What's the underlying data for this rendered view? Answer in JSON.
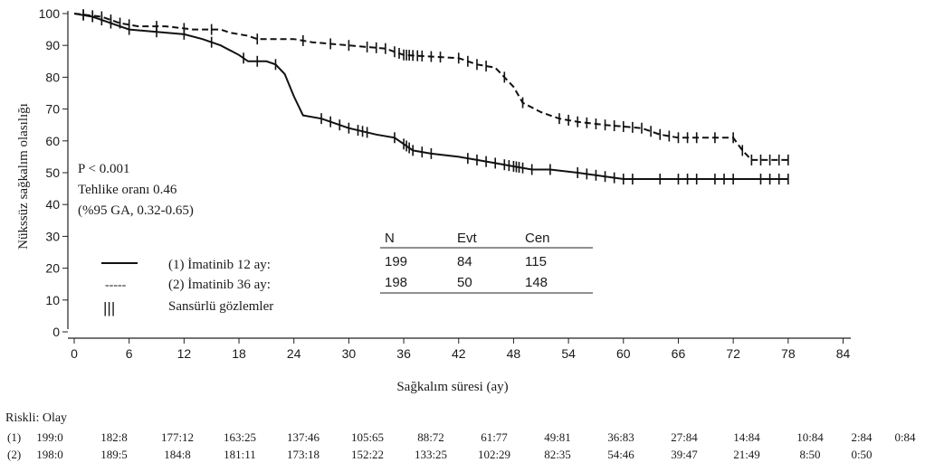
{
  "chart_data": {
    "type": "line",
    "ylabel": "Nükssüz sağkalım olasılığı",
    "xlabel": "Sağkalım süresi (ay)",
    "xlim": [
      0,
      84
    ],
    "ylim": [
      0,
      100
    ],
    "x_ticks": [
      "0",
      "6",
      "12",
      "18",
      "24",
      "30",
      "36",
      "42",
      "48",
      "54",
      "60",
      "66",
      "72",
      "78",
      "84"
    ],
    "y_ticks": [
      "0",
      "10",
      "20",
      "30",
      "40",
      "50",
      "60",
      "70",
      "80",
      "90",
      "100"
    ],
    "stats": {
      "p_value": "P < 0.001",
      "hazard_ratio": "Tehlike oranı 0.46",
      "ci": "(%95 GA, 0.32-0.65)"
    },
    "legend": {
      "series1": "(1) İmatinib 12 ay:",
      "series2": "(2) İmatinib 36 ay:",
      "censored_symbol": "|||",
      "censored": "Sansürlü gözlemler",
      "dash_sample": "-----"
    },
    "summary_table": {
      "headers": [
        "N",
        "Evt",
        "Cen"
      ],
      "rows": [
        [
          "199",
          "84",
          "115"
        ],
        [
          "198",
          "50",
          "148"
        ]
      ]
    },
    "series": [
      {
        "style": "solid",
        "points": [
          [
            0,
            100
          ],
          [
            2,
            99
          ],
          [
            4,
            97
          ],
          [
            6,
            95
          ],
          [
            8,
            94.5
          ],
          [
            10,
            94
          ],
          [
            12,
            93.5
          ],
          [
            14,
            92
          ],
          [
            16,
            90
          ],
          [
            18,
            87
          ],
          [
            19,
            85
          ],
          [
            21,
            85
          ],
          [
            22,
            84
          ],
          [
            23,
            81
          ],
          [
            24,
            74
          ],
          [
            25,
            68
          ],
          [
            27,
            67
          ],
          [
            29,
            65
          ],
          [
            30,
            64
          ],
          [
            33,
            62
          ],
          [
            35,
            61
          ],
          [
            37,
            57
          ],
          [
            39,
            56
          ],
          [
            42,
            55
          ],
          [
            44,
            54
          ],
          [
            46,
            53
          ],
          [
            48,
            52
          ],
          [
            50,
            51
          ],
          [
            52,
            51
          ],
          [
            55,
            50
          ],
          [
            60,
            48
          ],
          [
            70,
            48
          ],
          [
            78,
            48
          ]
        ],
        "censor_x": [
          1,
          2,
          3,
          4,
          6,
          9,
          12,
          15,
          18.5,
          20,
          22,
          27,
          28,
          29,
          30,
          31,
          31.5,
          32,
          35,
          36,
          36.3,
          36.6,
          37,
          38,
          39,
          43,
          44,
          45,
          46,
          47,
          47.5,
          48,
          48.3,
          48.6,
          49,
          50,
          52,
          55,
          56,
          57,
          58,
          59,
          60,
          61,
          64,
          66,
          67,
          68,
          70,
          71,
          72,
          75,
          76,
          77,
          78
        ]
      },
      {
        "style": "dashed",
        "points": [
          [
            0,
            100
          ],
          [
            3,
            99
          ],
          [
            5,
            97
          ],
          [
            7,
            96
          ],
          [
            10,
            96
          ],
          [
            13,
            95
          ],
          [
            16,
            95
          ],
          [
            17,
            94
          ],
          [
            19,
            93
          ],
          [
            20,
            92
          ],
          [
            24,
            92
          ],
          [
            26,
            91
          ],
          [
            30,
            90
          ],
          [
            34,
            89
          ],
          [
            36,
            87
          ],
          [
            42,
            86
          ],
          [
            44,
            84
          ],
          [
            46,
            83
          ],
          [
            47,
            80
          ],
          [
            48,
            77
          ],
          [
            49,
            72
          ],
          [
            51,
            69
          ],
          [
            53,
            67
          ],
          [
            55,
            66
          ],
          [
            58,
            65
          ],
          [
            62,
            64
          ],
          [
            64,
            62
          ],
          [
            66,
            61
          ],
          [
            72,
            61
          ],
          [
            73,
            57
          ],
          [
            74,
            54
          ],
          [
            78,
            54
          ]
        ],
        "censor_x": [
          1,
          2,
          3,
          4,
          5,
          6,
          9,
          12,
          15,
          20,
          25,
          28,
          30,
          32,
          33,
          34,
          35,
          35.5,
          36,
          36.3,
          36.6,
          37,
          37.5,
          38,
          39,
          40,
          42,
          43,
          44,
          45,
          47,
          49,
          53,
          54,
          55,
          56,
          57,
          58,
          59,
          60,
          61,
          62,
          63,
          64,
          65,
          66,
          67,
          68,
          70,
          72,
          73,
          74,
          75,
          76,
          77,
          78
        ]
      }
    ],
    "risk_table": {
      "title": "Riskli: Olay",
      "rows": [
        {
          "label": "(1)",
          "values": [
            "199:0",
            "182:8",
            "177:12",
            "163:25",
            "137:46",
            "105:65",
            "88:72",
            "61:77",
            "49:81",
            "36:83",
            "27:84",
            "14:84",
            "10:84",
            "2:84",
            "0:84"
          ]
        },
        {
          "label": "(2)",
          "values": [
            "198:0",
            "189:5",
            "184:8",
            "181:11",
            "173:18",
            "152:22",
            "133:25",
            "102:29",
            "82:35",
            "54:46",
            "39:47",
            "21:49",
            "8:50",
            "0:50"
          ]
        }
      ]
    }
  }
}
